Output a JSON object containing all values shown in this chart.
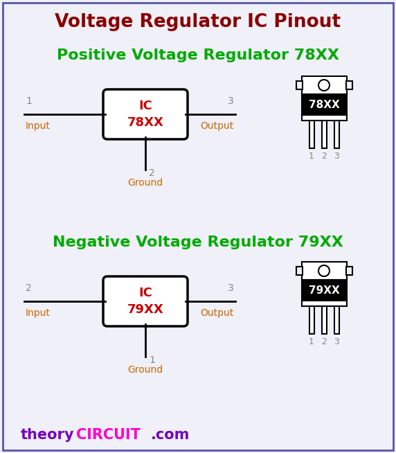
{
  "title": "Voltage Regulator IC Pinout",
  "title_color": "#8B0000",
  "bg_color": "#eff0f8",
  "border_color": "#5555aa",
  "pos_title": "Positive Voltage Regulator 78XX",
  "neg_title": "Negative Voltage Regulator 79XX",
  "green_color": "#00aa00",
  "red_color": "#cc0000",
  "gray_color": "#888888",
  "brown_color": "#cc6600",
  "watermark_theory": "theory",
  "watermark_circuit": "CIRCUIT",
  "watermark_com": ".com",
  "watermark_theory_color": "#7700bb",
  "watermark_circuit_color": "#ff00cc",
  "watermark_com_color": "#7700bb",
  "pos_ic_label": "IC\n78XX",
  "neg_ic_label": "IC\n79XX",
  "pos_input_pin": "1",
  "pos_ground_pin": "2",
  "pos_output_pin": "3",
  "neg_input_pin": "2",
  "neg_ground_pin": "1",
  "neg_output_pin": "3",
  "input_label": "Input",
  "output_label": "Output",
  "ground_label": "Ground",
  "pos_chip_label": "78XX",
  "neg_chip_label": "79XX"
}
